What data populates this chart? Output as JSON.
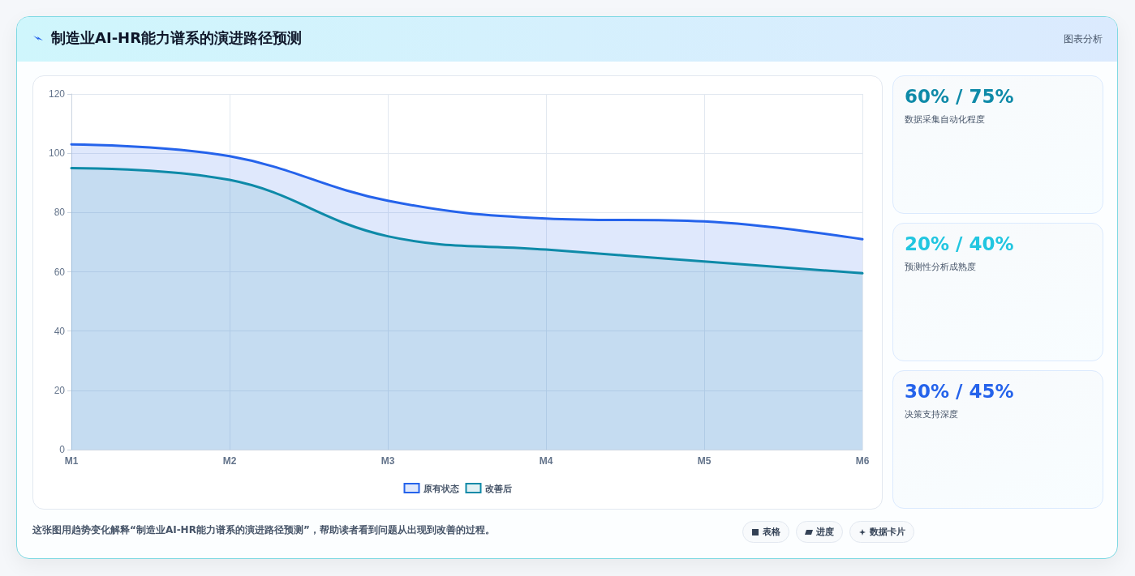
{
  "chart_data": [
    {
      "type": "area",
      "title": "制造业AI-HR能力谱系的演进路径预测",
      "categories": [
        "M1",
        "M2",
        "M3",
        "M4",
        "M5",
        "M6"
      ],
      "series": [
        {
          "name": "原有状态",
          "color": "#2563eb",
          "values": [
            103,
            99,
            84,
            78,
            77,
            71
          ]
        },
        {
          "name": "改善后",
          "color": "#0e8aa8",
          "values": [
            95,
            91,
            72,
            67.5,
            63.5,
            59.5
          ]
        }
      ],
      "ylim": [
        0,
        120
      ],
      "yticks": [
        0,
        20,
        40,
        60,
        80,
        100,
        120
      ],
      "grid": true,
      "legend": "bottom",
      "marker": "none",
      "line_style": "solid",
      "annotations": [
        "图表分析",
        "这张图用趋势变化解释“制造业AI-HR能力谱系的演进路径预测”，帮助读者看到问题从出现到改善的过程。",
        "表格",
        "进度",
        "数据卡片"
      ]
    },
    {
      "type": "other",
      "annotations": [
        "60% / 75%",
        "数据采集自动化程度",
        "20% / 40%",
        "预测性分析成熟度",
        "30% / 45%",
        "决策支持深度"
      ]
    }
  ]
}
